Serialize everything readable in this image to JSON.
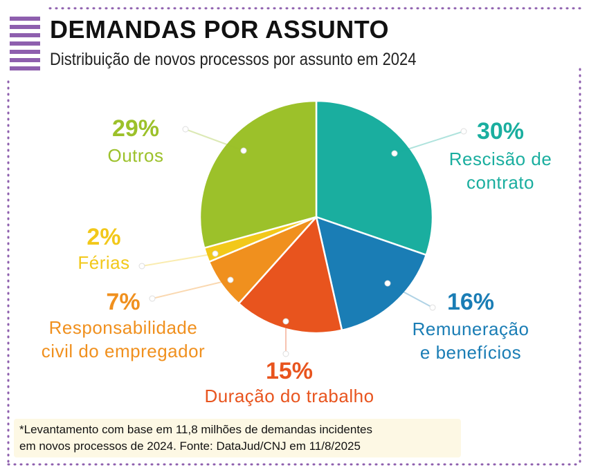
{
  "chart_data": {
    "type": "pie",
    "title": "DEMANDAS POR ASSUNTO",
    "subtitle": "Distribuição de novos processos por assunto em 2024",
    "categories": [
      "Rescisão de\ncontrato",
      "Remuneração\ne benefícios",
      "Duração do trabalho",
      "Responsabilidade\ncivil do empregador",
      "Férias",
      "Outros"
    ],
    "values": [
      30,
      16,
      15,
      7,
      2,
      29
    ],
    "value_labels": [
      "30%",
      "16%",
      "15%",
      "7%",
      "2%",
      "29%"
    ],
    "colors": [
      "#1aae9f",
      "#1a7db5",
      "#e8541e",
      "#f0901e",
      "#f2c81a",
      "#9cc12a"
    ],
    "note": "*Levantamento com base em 11,8 milhões de demandas incidentes\nem novos processos de 2024.  Fonte: DataJud/CNJ em 11/8/2025"
  }
}
